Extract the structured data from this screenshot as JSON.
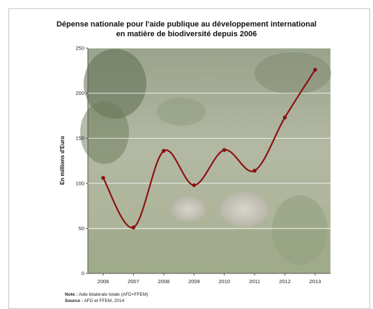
{
  "chart_data": {
    "type": "line",
    "title_line1": "Dépense nationale pour l'aide publique au développement international",
    "title_line2": "en matière de biodiversité depuis 2006",
    "ylabel": "En millions d'Euro",
    "xlabel": "",
    "categories": [
      "2006",
      "2007",
      "2008",
      "2009",
      "2010",
      "2011",
      "2012",
      "2013"
    ],
    "series": [
      {
        "values": [
          106,
          51,
          136,
          98,
          137,
          114,
          173,
          226
        ],
        "color": "#8b1111"
      }
    ],
    "yticks": [
      0,
      50,
      100,
      150,
      200,
      250
    ],
    "ylim": [
      0,
      250
    ],
    "grid": true,
    "background": "photo of a tropical hillside with vegetation and rocks"
  },
  "note": {
    "label": "Note :",
    "text": "Aide bilatérale totale (AFD+FFEM)"
  },
  "source": {
    "label": "Source :",
    "text": "AFD et FFEM, 2014"
  }
}
